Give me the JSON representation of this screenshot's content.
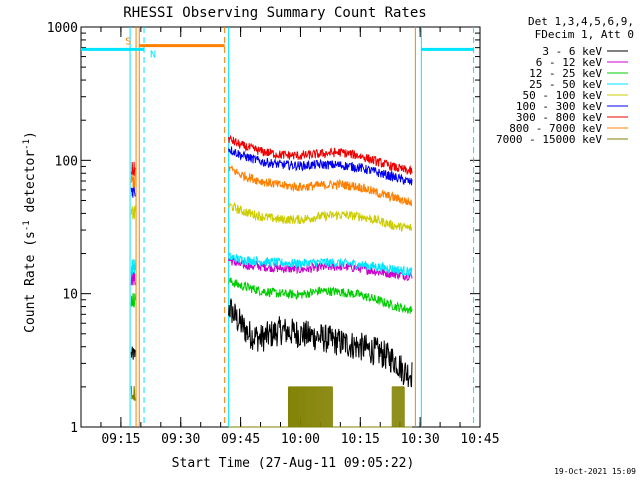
{
  "chart_data": {
    "type": "line",
    "title": "RHESSI Observing Summary Count Rates",
    "xlabel": "Start Time (27-Aug-11 09:05:22)",
    "ylabel_parts": [
      "Count Rate (s",
      "-1",
      " detector",
      "-1",
      ")"
    ],
    "yscale": "log",
    "ylim": [
      1,
      1000
    ],
    "xlim_minutes": [
      5,
      105
    ],
    "x_ticks": [
      {
        "t": 15,
        "label": "09:15"
      },
      {
        "t": 30,
        "label": "09:30"
      },
      {
        "t": 45,
        "label": "09:45"
      },
      {
        "t": 60,
        "label": "10:00"
      },
      {
        "t": 75,
        "label": "10:15"
      },
      {
        "t": 90,
        "label": "10:30"
      },
      {
        "t": 105,
        "label": "10:45"
      }
    ],
    "y_ticks": [
      {
        "v": 1,
        "label": "1"
      },
      {
        "v": 10,
        "label": "10"
      },
      {
        "v": 100,
        "label": "100"
      },
      {
        "v": 1000,
        "label": "1000"
      }
    ],
    "legend_header": [
      "Det 1,3,4,5,6,9,",
      "FDecim 1, Att 0"
    ],
    "legend_position": "right",
    "timestamp": "19-Oct-2021 15:09",
    "series": [
      {
        "name": "3 - 6 keV",
        "color": "#000000",
        "burst": {
          "t": [
            17.6,
            18.6
          ],
          "v": 3.5
        },
        "points": [
          [
            42,
            8.0
          ],
          [
            44,
            6.5
          ],
          [
            47,
            5.0
          ],
          [
            50,
            4.6
          ],
          [
            55,
            5.3
          ],
          [
            60,
            5.0
          ],
          [
            65,
            4.7
          ],
          [
            70,
            4.3
          ],
          [
            75,
            4.0
          ],
          [
            80,
            3.6
          ],
          [
            84,
            3.1
          ],
          [
            86,
            2.6
          ],
          [
            88,
            2.5
          ]
        ]
      },
      {
        "name": "6 - 12 keV",
        "color": "#cc00cc",
        "burst": {
          "t": [
            17.6,
            18.6
          ],
          "v": 13
        },
        "points": [
          [
            42,
            18.0
          ],
          [
            45,
            16.5
          ],
          [
            50,
            16.0
          ],
          [
            55,
            15.5
          ],
          [
            60,
            15.2
          ],
          [
            65,
            15.8
          ],
          [
            70,
            16.0
          ],
          [
            75,
            15.5
          ],
          [
            80,
            14.5
          ],
          [
            84,
            14.0
          ],
          [
            88,
            13.5
          ]
        ]
      },
      {
        "name": "12 - 25 keV",
        "color": "#00cc00",
        "burst": {
          "t": [
            17.6,
            18.6
          ],
          "v": 9
        },
        "points": [
          [
            42,
            12.5
          ],
          [
            45,
            11.5
          ],
          [
            50,
            10.5
          ],
          [
            55,
            10.0
          ],
          [
            60,
            9.8
          ],
          [
            65,
            10.5
          ],
          [
            70,
            10.3
          ],
          [
            75,
            9.8
          ],
          [
            80,
            8.8
          ],
          [
            84,
            8.0
          ],
          [
            88,
            7.5
          ]
        ]
      },
      {
        "name": "25 - 50 keV",
        "color": "#00e5ff",
        "burst": {
          "t": [
            17.6,
            18.6
          ],
          "v": 16
        },
        "points": [
          [
            42,
            19.0
          ],
          [
            45,
            18.0
          ],
          [
            50,
            17.5
          ],
          [
            55,
            17.0
          ],
          [
            60,
            16.8
          ],
          [
            65,
            17.2
          ],
          [
            70,
            17.0
          ],
          [
            75,
            16.5
          ],
          [
            80,
            15.8
          ],
          [
            84,
            15.2
          ],
          [
            88,
            14.5
          ]
        ]
      },
      {
        "name": "50 - 100 keV",
        "color": "#cccc00",
        "burst": {
          "t": [
            17.6,
            18.6
          ],
          "v": 40
        },
        "points": [
          [
            42,
            46
          ],
          [
            45,
            42
          ],
          [
            50,
            38
          ],
          [
            55,
            36
          ],
          [
            60,
            36
          ],
          [
            65,
            38
          ],
          [
            70,
            39
          ],
          [
            75,
            38
          ],
          [
            80,
            35
          ],
          [
            84,
            32
          ],
          [
            88,
            31
          ]
        ]
      },
      {
        "name": "100 - 300 keV",
        "color": "#0000ee",
        "burst": {
          "t": [
            17.6,
            18.6
          ],
          "v": 60
        },
        "points": [
          [
            42,
            122
          ],
          [
            45,
            110
          ],
          [
            50,
            98
          ],
          [
            55,
            93
          ],
          [
            60,
            91
          ],
          [
            65,
            93
          ],
          [
            70,
            92
          ],
          [
            75,
            88
          ],
          [
            80,
            80
          ],
          [
            84,
            74
          ],
          [
            88,
            68
          ]
        ]
      },
      {
        "name": "300 - 800 keV",
        "color": "#ee0000",
        "burst": {
          "t": [
            17.6,
            18.6
          ],
          "v": 85
        },
        "points": [
          [
            42,
            145
          ],
          [
            45,
            130
          ],
          [
            50,
            117
          ],
          [
            55,
            110
          ],
          [
            60,
            108
          ],
          [
            65,
            112
          ],
          [
            70,
            115
          ],
          [
            75,
            108
          ],
          [
            80,
            96
          ],
          [
            84,
            88
          ],
          [
            88,
            82
          ]
        ]
      },
      {
        "name": "800 - 7000 keV",
        "color": "#ff7f00",
        "burst": {
          "t": [
            17.6,
            18.6
          ],
          "v": 70
        },
        "points": [
          [
            42,
            88
          ],
          [
            45,
            78
          ],
          [
            50,
            70
          ],
          [
            55,
            65
          ],
          [
            60,
            63
          ],
          [
            65,
            65
          ],
          [
            70,
            66
          ],
          [
            75,
            63
          ],
          [
            80,
            56
          ],
          [
            84,
            52
          ],
          [
            88,
            48
          ]
        ]
      },
      {
        "name": "7000 - 15000 keV",
        "color": "#808000",
        "burst": {
          "t": [
            17.6,
            18.6
          ],
          "v": 1.8
        },
        "points": [
          [
            42,
            1.0
          ],
          [
            88,
            1.0
          ]
        ],
        "spikes": [
          [
            57,
            68,
            2.0
          ],
          [
            83,
            86,
            2.0
          ]
        ]
      }
    ],
    "flags": {
      "saa": {
        "label": "S",
        "color": "#ff7f00",
        "t_start": 19.6,
        "t_end": 41.0,
        "level": 725
      },
      "night": {
        "label": "N",
        "color": "#00e5ff",
        "segments": [
          [
            5,
            20.8
          ],
          [
            90.3,
            103.4
          ]
        ],
        "level": 680
      }
    },
    "vlines": [
      {
        "t": 17.3,
        "color": "#00e5ff",
        "style": "solid"
      },
      {
        "t": 18.8,
        "color": "#ff7f00",
        "style": "solid"
      },
      {
        "t": 19.6,
        "color": "#ff7f00",
        "style": "solid"
      },
      {
        "t": 20.8,
        "color": "#00e5ff",
        "style": "dash"
      },
      {
        "t": 41.0,
        "color": "#ff7f00",
        "style": "dash"
      },
      {
        "t": 42.0,
        "color": "#00e5ff",
        "style": "solid"
      },
      {
        "t": 88.8,
        "color": "#ff7f00",
        "style": "solid"
      },
      {
        "t": 90.3,
        "color": "#00e5ff",
        "style": "solid"
      },
      {
        "t": 103.4,
        "color": "#00e5ff",
        "style": "dash"
      }
    ]
  }
}
